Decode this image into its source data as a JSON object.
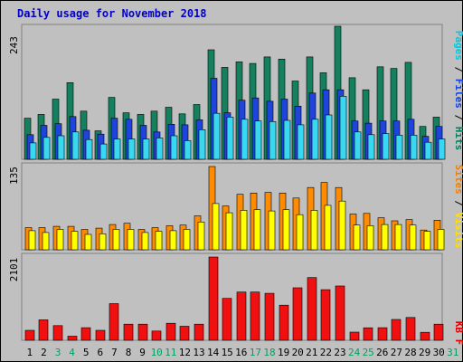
{
  "chart_data": {
    "type": "bar",
    "title": "Daily usage for November 2018",
    "categories": [
      "1",
      "2",
      "3",
      "4",
      "5",
      "6",
      "7",
      "8",
      "9",
      "10",
      "11",
      "12",
      "13",
      "14",
      "15",
      "16",
      "17",
      "18",
      "19",
      "20",
      "21",
      "22",
      "23",
      "24",
      "25",
      "26",
      "27",
      "28",
      "29",
      "30",
      "31"
    ],
    "weekend_days": [
      "3",
      "4",
      "10",
      "11",
      "17",
      "18",
      "24",
      "25",
      "31"
    ],
    "panels": [
      {
        "name": "pages-files-hits",
        "max_label": "243",
        "ylim": [
          0,
          243
        ],
        "ylabel_parts": [
          {
            "text": "Pages",
            "color": "#00c8e0"
          },
          {
            "text": " / ",
            "color": "#000000"
          },
          {
            "text": "Files",
            "color": "#1040e0"
          },
          {
            "text": " / ",
            "color": "#000000"
          },
          {
            "text": "Hits",
            "color": "#008060"
          }
        ],
        "series": [
          {
            "name": "Hits",
            "color": "#14805e",
            "values": [
              75,
              82,
              110,
              140,
              88,
              52,
              113,
              85,
              82,
              88,
              95,
              83,
              100,
              200,
              168,
              178,
              175,
              187,
              183,
              143,
              187,
              158,
              243,
              149,
              127,
              169,
              166,
              177,
              60,
              77,
              null
            ]
          },
          {
            "name": "Files",
            "color": "#1e44dc",
            "values": [
              45,
              62,
              65,
              78,
              53,
              46,
              75,
              73,
              62,
              50,
              64,
              63,
              72,
              148,
              85,
              108,
              112,
              106,
              110,
              97,
              121,
              127,
              127,
              70,
              66,
              70,
              70,
              73,
              42,
              60,
              null
            ]
          },
          {
            "name": "Pages",
            "color": "#38d8f2",
            "values": [
              30,
              40,
              43,
              50,
              36,
              28,
              37,
              37,
              37,
              39,
              43,
              34,
              54,
              84,
              77,
              73,
              70,
              69,
              71,
              63,
              73,
              81,
              115,
              50,
              45,
              47,
              44,
              44,
              31,
              37,
              null
            ]
          }
        ]
      },
      {
        "name": "sites-visits",
        "max_label": "135",
        "ylim": [
          0,
          135
        ],
        "ylabel_parts": [
          {
            "text": "Sites",
            "color": "#f08000"
          },
          {
            "text": " / ",
            "color": "#000000"
          },
          {
            "text": "Visits",
            "color": "#ffe000"
          }
        ],
        "series": [
          {
            "name": "Sites",
            "color": "#ff8c00",
            "values": [
              36,
              36,
              38,
              38,
              33,
              35,
              41,
              43,
              33,
              36,
              39,
              40,
              55,
              135,
              71,
              90,
              92,
              93,
              92,
              84,
              101,
              109,
              101,
              58,
              59,
              52,
              47,
              49,
              32,
              48,
              null
            ]
          },
          {
            "name": "Visits",
            "color": "#ffff00",
            "values": [
              31,
              28,
              33,
              30,
              25,
              26,
              33,
              33,
              28,
              30,
              31,
              33,
              45,
              75,
              60,
              64,
              65,
              63,
              65,
              57,
              64,
              72,
              79,
              40,
              39,
              41,
              41,
              40,
              30,
              33,
              null
            ]
          }
        ]
      },
      {
        "name": "kbytes",
        "max_label": "2101",
        "ylim": [
          0,
          2101
        ],
        "ylabel_parts": [
          {
            "text": "KB F",
            "color": "#e00000"
          }
        ],
        "series": [
          {
            "name": "KBytes",
            "color": "#f01010",
            "values": [
              252,
              517,
              369,
              103,
              318,
              252,
              925,
              406,
              406,
              232,
              429,
              355,
              406,
              2101,
              1058,
              1218,
              1218,
              1185,
              885,
              1324,
              1582,
              1276,
              1370,
              206,
              315,
              318,
              526,
              576,
              202,
              406,
              null
            ]
          }
        ]
      }
    ]
  }
}
